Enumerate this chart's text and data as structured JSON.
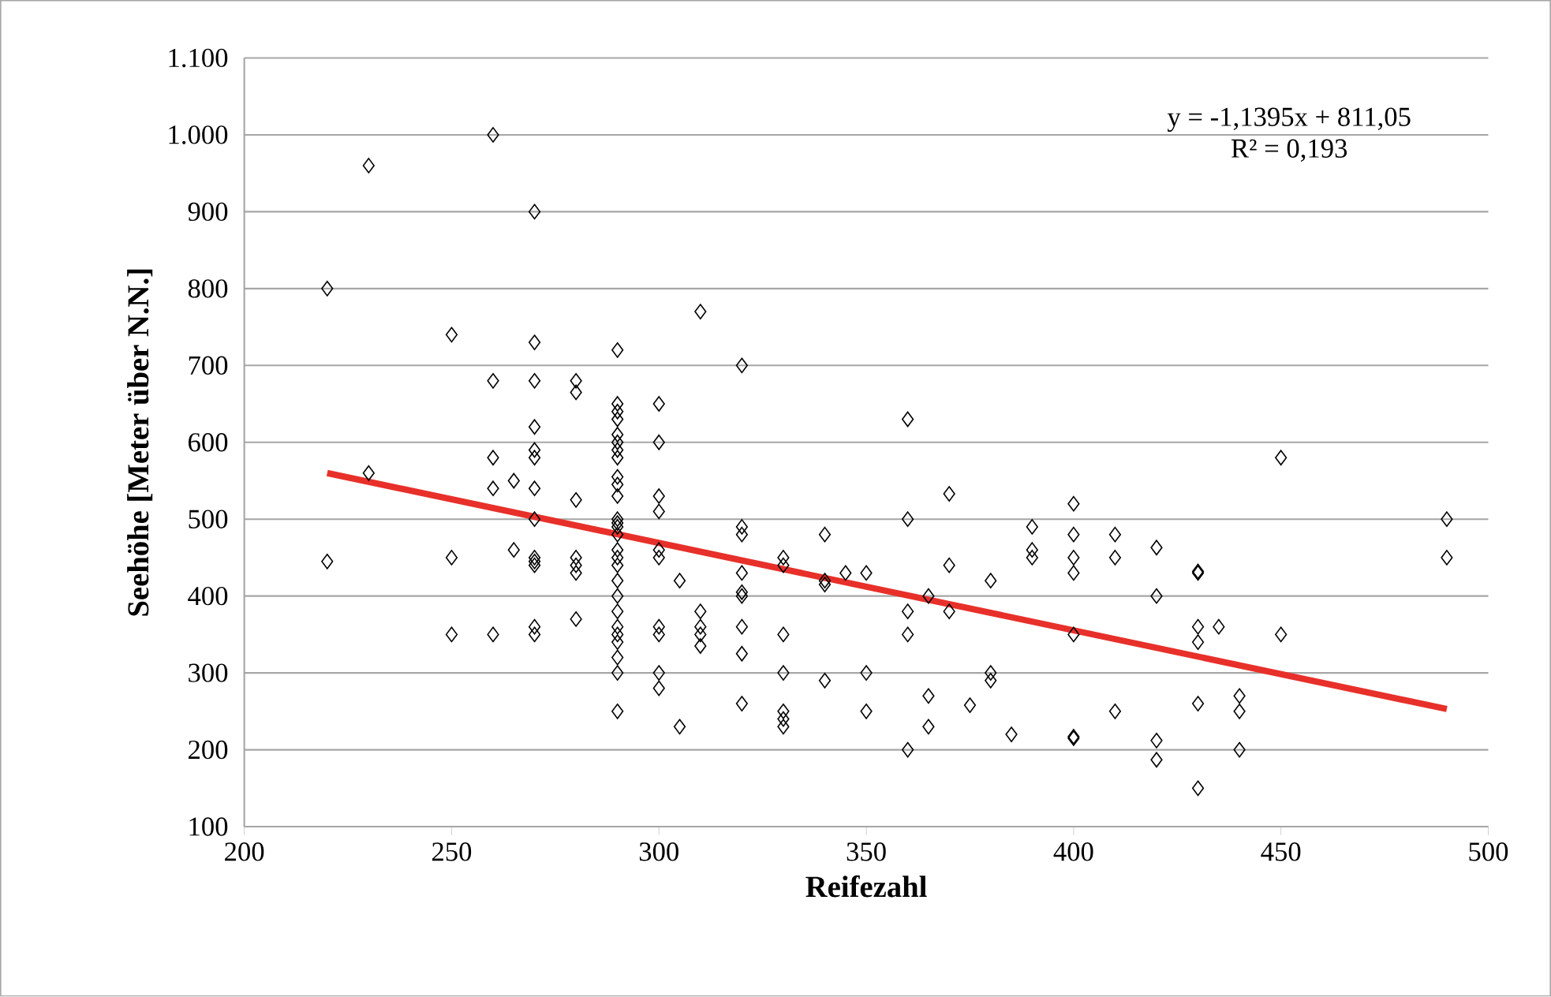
{
  "chart_data": {
    "type": "scatter",
    "xlabel": "Reifezahl",
    "ylabel": "Seehöhe [Meter über N.N.]",
    "xlim": [
      200,
      500
    ],
    "xticks": [
      200,
      250,
      300,
      350,
      400,
      450,
      500
    ],
    "ylim": [
      100,
      1100
    ],
    "yticks": [
      100,
      200,
      300,
      400,
      500,
      600,
      700,
      800,
      900,
      {
        "value": 1000,
        "label": "1.000"
      },
      {
        "value": 1100,
        "label": "1.100"
      }
    ],
    "grid": "y",
    "marker": "diamond",
    "annotations": [
      "y = -1,1395x + 811,05",
      "R² = 0,193"
    ],
    "series": [
      {
        "color": "#000000",
        "x": [
          220,
          220,
          230,
          230,
          250,
          250,
          250,
          260,
          260,
          260,
          260,
          260,
          265,
          265,
          270,
          270,
          270,
          270,
          270,
          270,
          270,
          270,
          270,
          270,
          270,
          270,
          270,
          280,
          280,
          280,
          280,
          280,
          280,
          280,
          290,
          290,
          290,
          290,
          290,
          290,
          290,
          290,
          290,
          290,
          290,
          290,
          290,
          290,
          290,
          290,
          290,
          290,
          290,
          290,
          290,
          290,
          290,
          290,
          290,
          290,
          290,
          300,
          300,
          300,
          300,
          300,
          300,
          300,
          300,
          300,
          300,
          305,
          305,
          310,
          310,
          310,
          310,
          310,
          320,
          320,
          320,
          320,
          320,
          320,
          320,
          320,
          320,
          330,
          330,
          330,
          330,
          330,
          330,
          330,
          340,
          340,
          340,
          340,
          345,
          350,
          350,
          350,
          360,
          360,
          360,
          360,
          360,
          365,
          365,
          365,
          370,
          370,
          370,
          375,
          380,
          380,
          380,
          385,
          390,
          390,
          390,
          400,
          400,
          400,
          400,
          400,
          400,
          400,
          410,
          410,
          410,
          420,
          420,
          420,
          420,
          430,
          430,
          430,
          430,
          430,
          430,
          435,
          440,
          440,
          440,
          450,
          450,
          490,
          490
        ],
        "values": [
          800,
          445,
          960,
          560,
          740,
          450,
          350,
          1000,
          680,
          580,
          540,
          350,
          550,
          460,
          900,
          730,
          680,
          620,
          590,
          580,
          540,
          500,
          450,
          445,
          440,
          360,
          350,
          680,
          665,
          525,
          450,
          440,
          430,
          370,
          720,
          650,
          640,
          630,
          610,
          600,
          590,
          580,
          555,
          545,
          530,
          500,
          495,
          490,
          480,
          460,
          450,
          440,
          420,
          400,
          380,
          360,
          350,
          340,
          320,
          300,
          250,
          650,
          600,
          530,
          510,
          460,
          450,
          360,
          350,
          300,
          280,
          420,
          230,
          770,
          380,
          360,
          350,
          335,
          700,
          490,
          480,
          430,
          405,
          400,
          360,
          325,
          260,
          450,
          440,
          350,
          300,
          250,
          240,
          230,
          480,
          420,
          415,
          290,
          430,
          430,
          300,
          250,
          630,
          500,
          380,
          350,
          200,
          400,
          270,
          230,
          533,
          440,
          380,
          258,
          420,
          300,
          290,
          220,
          490,
          460,
          450,
          520,
          480,
          450,
          430,
          350,
          217,
          215,
          480,
          450,
          250,
          463,
          400,
          212,
          187,
          432,
          430,
          360,
          340,
          260,
          150,
          360,
          270,
          250,
          200,
          580,
          350,
          500,
          450
        ]
      },
      {
        "type": "line",
        "color": "#e8302a",
        "marker": "none",
        "x": [
          220,
          490
        ],
        "values": [
          560,
          253
        ]
      }
    ]
  }
}
